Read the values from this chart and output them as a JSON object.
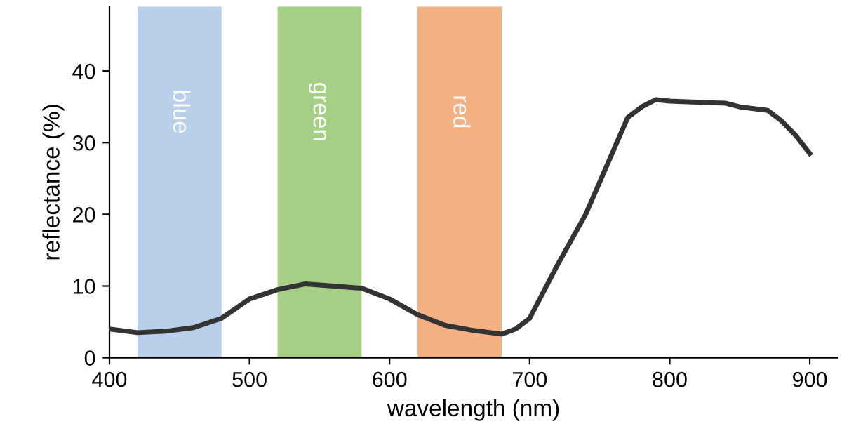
{
  "chart_data": {
    "type": "line",
    "xlabel": "wavelength (nm)",
    "ylabel": "reflectance (%)",
    "x": [
      400,
      420,
      440,
      460,
      480,
      500,
      520,
      540,
      560,
      580,
      600,
      620,
      640,
      660,
      680,
      690,
      700,
      720,
      740,
      760,
      770,
      780,
      790,
      800,
      840,
      850,
      870,
      880,
      890,
      900
    ],
    "series": [
      {
        "color": "#333333",
        "values": [
          4,
          3.5,
          3.7,
          4.2,
          5.5,
          8.2,
          9.5,
          10.3,
          10,
          9.7,
          8.2,
          6,
          4.5,
          3.8,
          3.3,
          4,
          5.5,
          13,
          20,
          29,
          33.5,
          35,
          36,
          35.8,
          35.5,
          35,
          34.5,
          33,
          31,
          28.5
        ]
      }
    ],
    "xlim": [
      400,
      920
    ],
    "ylim": [
      0,
      49
    ],
    "xticks": [
      400,
      500,
      600,
      700,
      800,
      900
    ],
    "yticks": [
      0,
      10,
      20,
      30,
      40
    ],
    "bands": [
      {
        "axis": "x",
        "from": 420,
        "to": 480,
        "label": "blue",
        "color": "#b8d0ea"
      },
      {
        "axis": "x",
        "from": 520,
        "to": 580,
        "label": "green",
        "color": "#a6cf86"
      },
      {
        "axis": "x",
        "from": 620,
        "to": 680,
        "label": "red",
        "color": "#f3b083"
      }
    ],
    "grid": false,
    "marker": "none",
    "line_style": "solid",
    "legend": false
  }
}
